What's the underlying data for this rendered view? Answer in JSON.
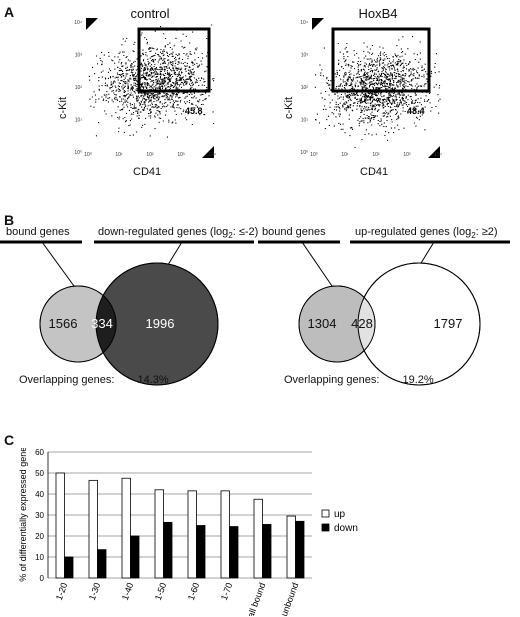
{
  "panel_a": {
    "letter": "A",
    "plots": [
      {
        "title": "control",
        "ylabel": "c-Kit",
        "xlabel": "CD41",
        "gate_value": "45.8",
        "ticks_y": [
          "10⁴",
          "10³",
          "10²",
          "10¹",
          "10⁰"
        ],
        "ticks_x": [
          "10⁰",
          "10¹",
          "10²",
          "10³",
          "10⁴"
        ]
      },
      {
        "title": "HoxB4",
        "ylabel": "c-Kit",
        "xlabel": "CD41",
        "gate_value": "48.4",
        "ticks_y": [
          "10⁴",
          "10³",
          "10²",
          "10¹",
          "10⁰"
        ],
        "ticks_x": [
          "10⁰",
          "10¹",
          "10²",
          "10³",
          "10⁴"
        ]
      }
    ]
  },
  "panel_b": {
    "letter": "B",
    "left": {
      "set1_label": "bound genes",
      "set2_label_pre": "down-regulated genes (log",
      "set2_label_sub": "2",
      "set2_label_post": ": ≤-2)",
      "only1": "1566",
      "both": "334",
      "only2": "1996",
      "overlap_caption": "Overlapping genes:",
      "overlap_value": "14.3%",
      "colors": {
        "set1": "#c4c4c4",
        "both": "#1e1e1e",
        "set2": "#4a4a4a"
      }
    },
    "right": {
      "set1_label": "bound genes",
      "set2_label_pre": "up-regulated genes (log",
      "set2_label_sub": "2",
      "set2_label_post": ": ≥2)",
      "only1": "1304",
      "both": "428",
      "only2": "1797",
      "overlap_caption": "Overlapping genes:",
      "overlap_value": "19.2%",
      "colors": {
        "set1": "#bdbdbd",
        "both": "#e2e2e2",
        "set2": "#ffffff"
      }
    }
  },
  "panel_c": {
    "letter": "C"
  },
  "chart_data": {
    "type": "bar",
    "categories": [
      "1-20",
      "1-30",
      "1-40",
      "1-50",
      "1-60",
      "1-70",
      "all bound",
      "unbound"
    ],
    "series": [
      {
        "name": "up",
        "values": [
          50,
          46.5,
          47.5,
          42,
          41.5,
          41.5,
          37.5,
          29.5
        ],
        "color": "#ffffff"
      },
      {
        "name": "down",
        "values": [
          10,
          13.5,
          20,
          26.5,
          25,
          24.5,
          25.5,
          27
        ],
        "color": "#000000"
      }
    ],
    "ylabel": "% of differentially expressed genes",
    "xlabel": "",
    "ylim": [
      0,
      60
    ],
    "yticks": [
      0,
      10,
      20,
      30,
      40,
      50,
      60
    ],
    "grid": true,
    "legend": "right"
  }
}
